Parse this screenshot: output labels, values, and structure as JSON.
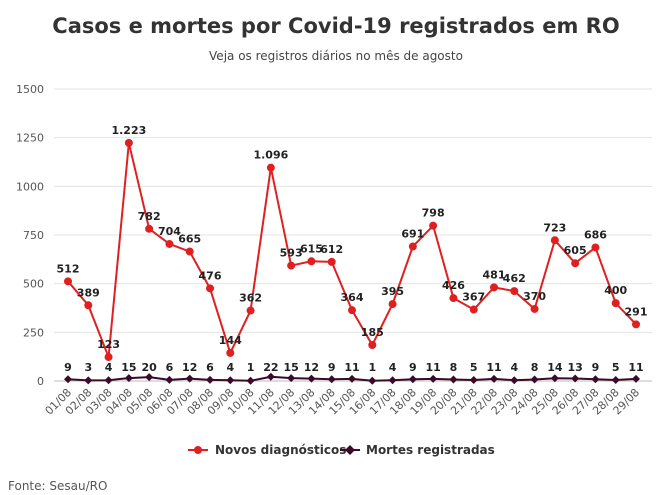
{
  "chart_data": {
    "type": "line",
    "title": "Casos e mortes por Covid-19 registrados em RO",
    "subtitle": "Veja os registros diários no mês de agosto",
    "source": "Fonte: Sesau/RO",
    "categories": [
      "01/08",
      "02/08",
      "03/08",
      "04/08",
      "05/08",
      "06/08",
      "07/08",
      "08/08",
      "09/08",
      "10/08",
      "11/08",
      "12/08",
      "13/08",
      "14/08",
      "15/08",
      "16/08",
      "17/08",
      "18/08",
      "19/08",
      "20/08",
      "21/08",
      "22/08",
      "23/08",
      "24/08",
      "25/08",
      "26/08",
      "27/08",
      "28/08",
      "29/08"
    ],
    "yticks": [
      0,
      250,
      500,
      750,
      1000,
      1250,
      1500
    ],
    "ytick_labels": [
      "0",
      "250",
      "500",
      "750",
      "1000",
      "1250",
      "1500"
    ],
    "ylim": [
      0,
      1500
    ],
    "grid": true,
    "legend_position": "bottom",
    "series": [
      {
        "name": "Novos diagnósticos",
        "color": "#e02020",
        "marker": "circle",
        "values": [
          512,
          389,
          123,
          1223,
          782,
          704,
          665,
          476,
          144,
          362,
          1096,
          593,
          615,
          612,
          364,
          185,
          395,
          691,
          798,
          426,
          367,
          481,
          462,
          370,
          723,
          605,
          686,
          400,
          291
        ],
        "labels": [
          "512",
          "389",
          "123",
          "1.223",
          "782",
          "704",
          "665",
          "476",
          "144",
          "362",
          "1.096",
          "593",
          "615",
          "612",
          "364",
          "185",
          "395",
          "691",
          "798",
          "426",
          "367",
          "481",
          "462",
          "370",
          "723",
          "605",
          "686",
          "400",
          "291"
        ]
      },
      {
        "name": "Mortes registradas",
        "color": "#3a0a2a",
        "marker": "diamond",
        "values": [
          9,
          3,
          4,
          15,
          20,
          6,
          12,
          6,
          4,
          1,
          22,
          15,
          12,
          9,
          11,
          1,
          4,
          9,
          11,
          8,
          5,
          11,
          4,
          8,
          14,
          13,
          9,
          5,
          11
        ],
        "labels": [
          "9",
          "3",
          "4",
          "15",
          "20",
          "6",
          "12",
          "6",
          "4",
          "1",
          "22",
          "15",
          "12",
          "9",
          "11",
          "1",
          "4",
          "9",
          "11",
          "8",
          "5",
          "11",
          "4",
          "8",
          "14",
          "13",
          "9",
          "5",
          "11"
        ]
      }
    ]
  }
}
